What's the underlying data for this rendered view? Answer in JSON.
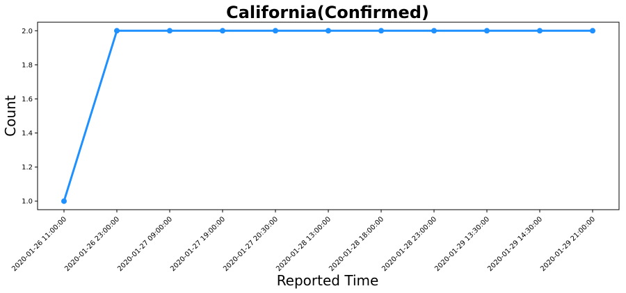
{
  "chart_data": {
    "type": "line",
    "title": "California(Confirmed)",
    "xlabel": "Reported Time",
    "ylabel": "Count",
    "categories": [
      "2020-01-26 11:00:00",
      "2020-01-26 23:00:00",
      "2020-01-27 09:00:00",
      "2020-01-27 19:00:00",
      "2020-01-27 20:30:00",
      "2020-01-28 13:00:00",
      "2020-01-28 18:00:00",
      "2020-01-28 23:00:00",
      "2020-01-29 13:30:00",
      "2020-01-29 14:30:00",
      "2020-01-29 21:00:00"
    ],
    "series": [
      {
        "values": [
          1,
          2,
          2,
          2,
          2,
          2,
          2,
          2,
          2,
          2,
          2
        ]
      }
    ],
    "ylim": [
      0.95,
      2.05
    ],
    "yticks": [
      "1.0",
      "1.2",
      "1.4",
      "1.6",
      "1.8",
      "2.0"
    ],
    "grid": false,
    "line_color": "#1e90ff"
  }
}
